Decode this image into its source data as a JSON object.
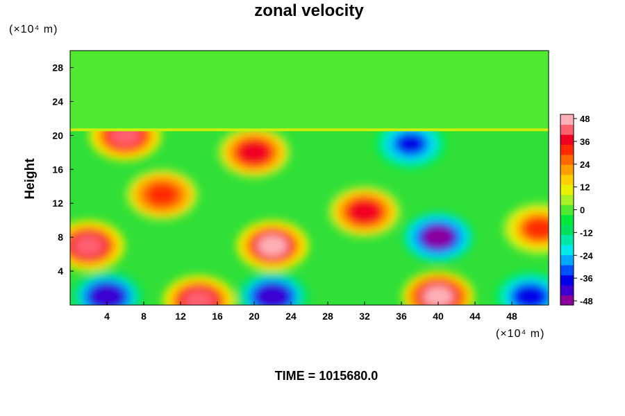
{
  "chart_data": {
    "type": "heatmap",
    "title": "zonal velocity",
    "ylabel": "Height",
    "x_unit": "(×10⁴ m)",
    "y_unit": "(×10⁴ m)",
    "xlim": [
      0,
      52
    ],
    "ylim": [
      0,
      30
    ],
    "x_ticks": [
      "4",
      "8",
      "12",
      "16",
      "20",
      "24",
      "28",
      "32",
      "36",
      "40",
      "44",
      "48"
    ],
    "y_ticks": [
      "4",
      "8",
      "12",
      "16",
      "20",
      "24",
      "28"
    ],
    "colorbar": {
      "range": [
        -48,
        48
      ],
      "tick_labels": [
        "48",
        "36",
        "24",
        "12",
        "0",
        "-12",
        "-24",
        "-36",
        "-48"
      ],
      "colors_low_to_high": [
        "#8b009b",
        "#3b00d0",
        "#0000e8",
        "#0050ff",
        "#00a8ff",
        "#00e8e8",
        "#00e8a8",
        "#00e060",
        "#00e83a",
        "#50e830",
        "#a8f028",
        "#e8f000",
        "#ffd000",
        "#ffa000",
        "#ff6a00",
        "#ff2a00",
        "#f00020",
        "#ff6070",
        "#ffb0b8"
      ]
    },
    "features": [
      {
        "x": 40,
        "y": 8,
        "value": -48
      },
      {
        "x": 22,
        "y": 1,
        "value": -44
      },
      {
        "x": 4,
        "y": 1,
        "value": -44
      },
      {
        "x": 50,
        "y": 1,
        "value": -40
      },
      {
        "x": 40,
        "y": 1,
        "value": 48
      },
      {
        "x": 14,
        "y": 0.5,
        "value": 44
      },
      {
        "x": 2,
        "y": 7,
        "value": 44
      },
      {
        "x": 22,
        "y": 7,
        "value": 46
      },
      {
        "x": 20,
        "y": 18,
        "value": 38
      },
      {
        "x": 6,
        "y": 20,
        "value": 40
      },
      {
        "x": 10,
        "y": 13,
        "value": 34
      },
      {
        "x": 32,
        "y": 11,
        "value": 38
      },
      {
        "x": 37,
        "y": 19,
        "value": -36
      },
      {
        "x": 51,
        "y": 9,
        "value": 30
      }
    ],
    "upper_layer": {
      "y_from": 20.5,
      "value": -2
    }
  },
  "footer": {
    "time_label": "TIME = 1015680.0"
  }
}
